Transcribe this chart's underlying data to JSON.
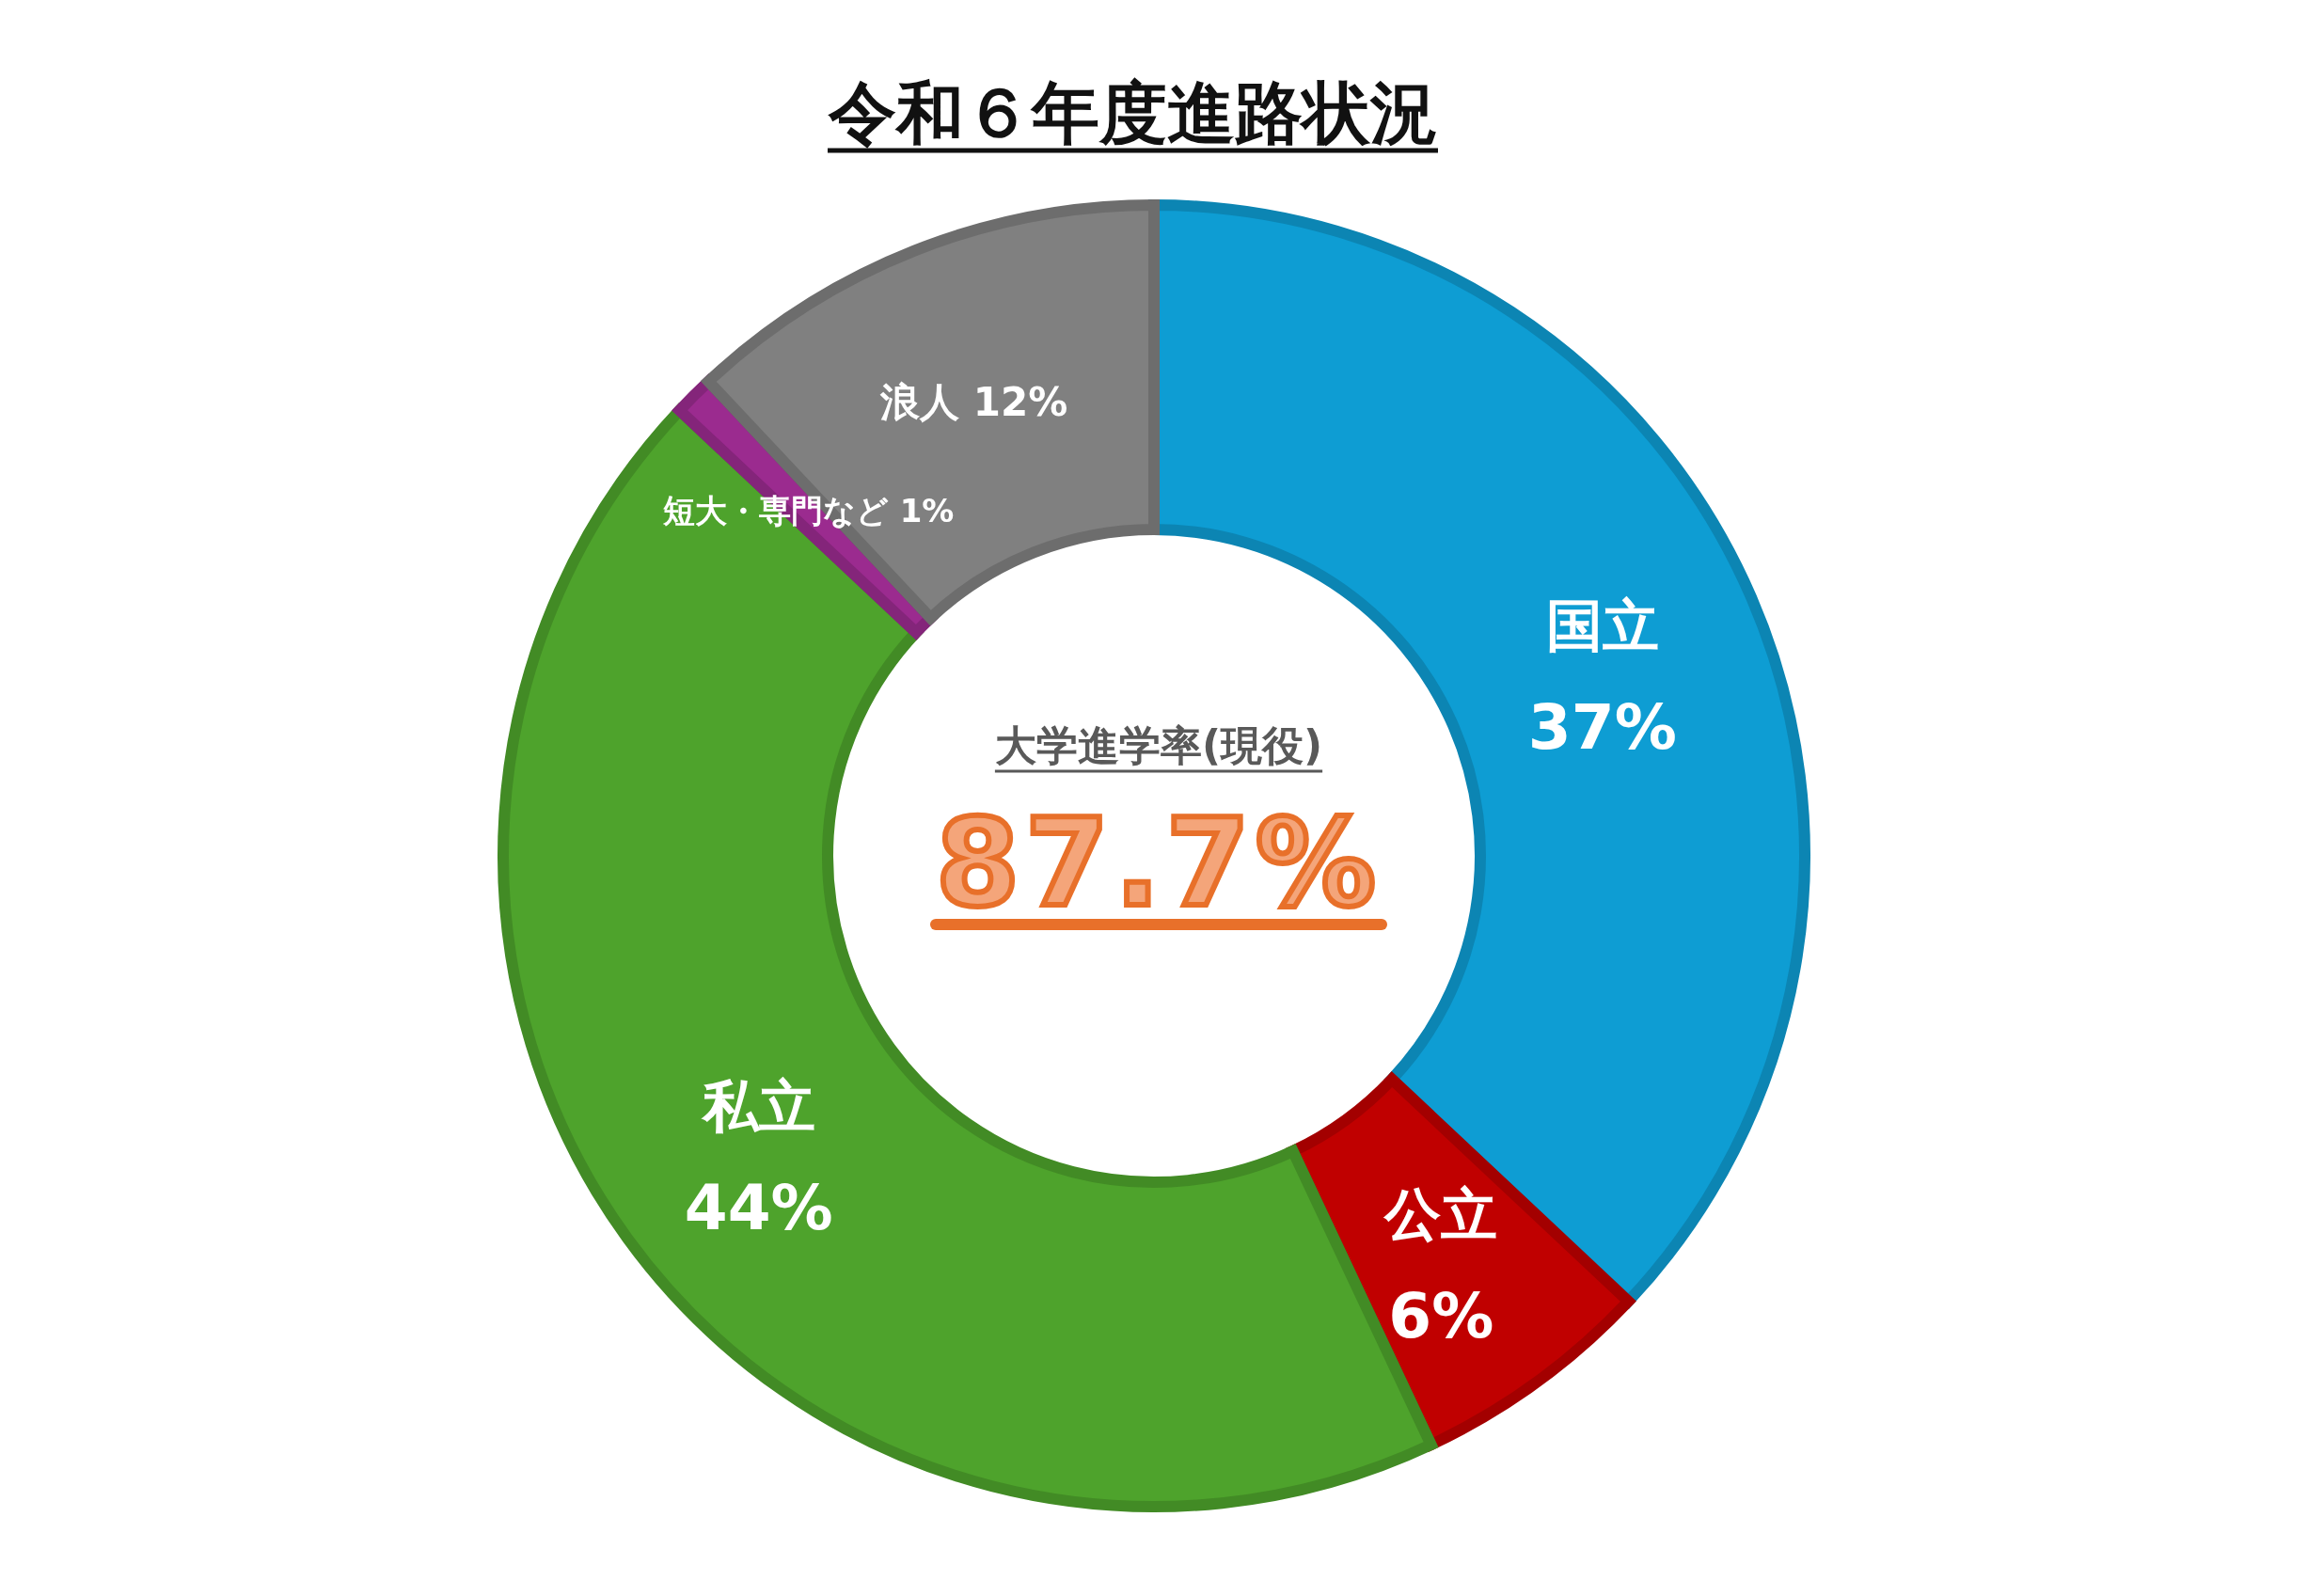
{
  "chart_data": {
    "type": "donut",
    "title": "令和６年度進路状況",
    "categories": [
      "国立",
      "公立",
      "私立",
      "短大・専門など",
      "浪人"
    ],
    "values": [
      37,
      6,
      44,
      1,
      12
    ],
    "colors": [
      "#0e9dd3",
      "#c00000",
      "#4ea32c",
      "#9b2b8f",
      "#808080"
    ],
    "value_labels": [
      "37%",
      "6%",
      "44%",
      "1%",
      "12%"
    ],
    "annotations": [
      "大学進学率(現役)",
      "87.7%"
    ]
  }
}
